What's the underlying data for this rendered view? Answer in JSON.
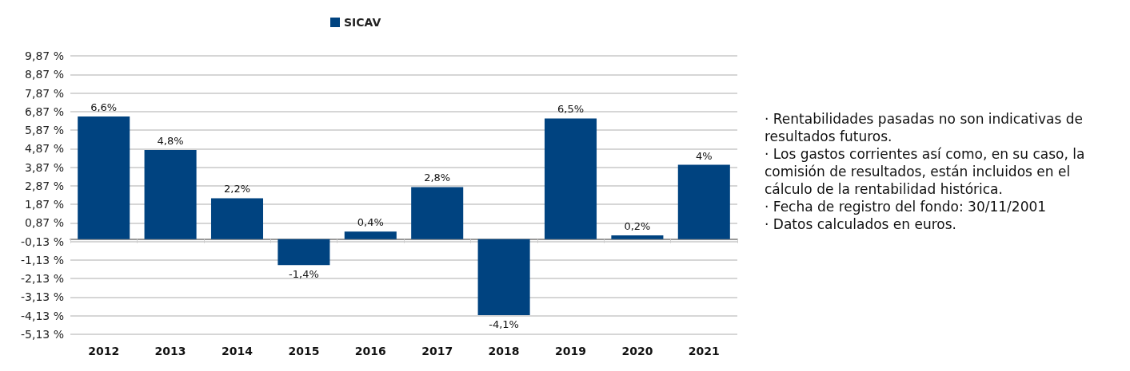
{
  "chart_data": {
    "type": "bar",
    "categories": [
      "2012",
      "2013",
      "2014",
      "2015",
      "2016",
      "2017",
      "2018",
      "2019",
      "2020",
      "2021"
    ],
    "series": [
      {
        "name": "SICAV",
        "color": "#004380",
        "values": [
          6.6,
          4.8,
          2.2,
          -1.4,
          0.4,
          2.8,
          -4.1,
          6.5,
          0.2,
          4
        ],
        "value_labels": [
          "6,6%",
          "4,8%",
          "2,2%",
          "-1,4%",
          "0,4%",
          "2,8%",
          "-4,1%",
          "6,5%",
          "0,2%",
          "4%"
        ]
      }
    ],
    "ylim": [
      -5.13,
      9.87
    ],
    "yticks": [
      {
        "value": -5.13,
        "label": "-5,13 %"
      },
      {
        "value": -4.13,
        "label": "-4,13 %"
      },
      {
        "value": -3.13,
        "label": "-3,13 %"
      },
      {
        "value": -2.13,
        "label": "-2,13 %"
      },
      {
        "value": -1.13,
        "label": "-1,13 %"
      },
      {
        "value": -0.13,
        "label": "-0,13 %"
      },
      {
        "value": 0.87,
        "label": "0,87 %"
      },
      {
        "value": 1.87,
        "label": "1,87 %"
      },
      {
        "value": 2.87,
        "label": "2,87 %"
      },
      {
        "value": 3.87,
        "label": "3,87 %"
      },
      {
        "value": 4.87,
        "label": "4,87 %"
      },
      {
        "value": 5.87,
        "label": "5,87 %"
      },
      {
        "value": 6.87,
        "label": "6,87 %"
      },
      {
        "value": 7.87,
        "label": "7,87 %"
      },
      {
        "value": 8.87,
        "label": "8,87 %"
      },
      {
        "value": 9.87,
        "label": "9,87 %"
      }
    ],
    "grid": "y",
    "legend": "top",
    "annotations": [
      "· Rentabilidades pasadas no son indicativas de resultados futuros.",
      "· Los gastos corrientes así como, en su caso, la comisión de resultados, están incluidos en el cálculo de la rentabilidad histórica.",
      "· Fecha de registro del fondo: 30/11/2001",
      "· Datos calculados en euros."
    ]
  }
}
